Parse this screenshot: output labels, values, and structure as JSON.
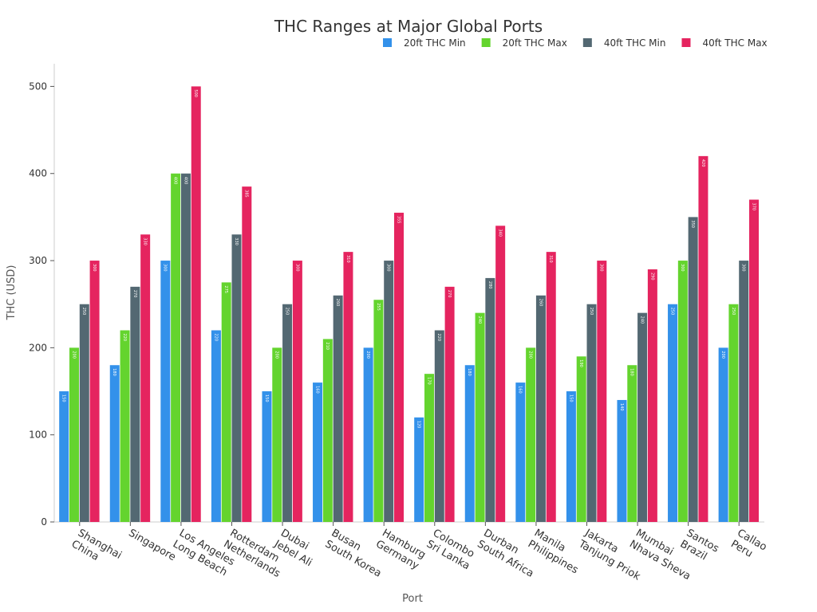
{
  "chart_data": {
    "type": "bar",
    "title": "THC Ranges at Major Global Ports",
    "x_label": "Port",
    "y_label": "THC (USD)",
    "categories": [
      [
        "Shanghai",
        "China"
      ],
      [
        "Singapore"
      ],
      [
        "Los Angeles",
        "Long Beach"
      ],
      [
        "Rotterdam",
        "Netherlands"
      ],
      [
        "Dubai",
        "Jebel Ali"
      ],
      [
        "Busan",
        "South Korea"
      ],
      [
        "Hamburg",
        "Germany"
      ],
      [
        "Colombo",
        "Sri Lanka"
      ],
      [
        "Durban",
        "South Africa"
      ],
      [
        "Manila",
        "Philippines"
      ],
      [
        "Jakarta",
        "Tanjung Priok"
      ],
      [
        "Mumbai",
        "Nhava Sheva"
      ],
      [
        "Santos",
        "Brazil"
      ],
      [
        "Callao",
        "Peru"
      ]
    ],
    "series": [
      {
        "name": "20ft THC Min",
        "color": "#3391ea",
        "values": [
          150,
          180,
          300,
          220,
          150,
          160,
          200,
          120,
          180,
          160,
          150,
          140,
          250,
          200
        ]
      },
      {
        "name": "20ft THC Max",
        "color": "#64d42e",
        "values": [
          200,
          220,
          400,
          275,
          200,
          210,
          255,
          170,
          240,
          200,
          190,
          180,
          300,
          250
        ]
      },
      {
        "name": "40ft THC Min",
        "color": "#536872",
        "values": [
          250,
          270,
          400,
          330,
          250,
          260,
          300,
          220,
          280,
          260,
          250,
          240,
          350,
          300
        ]
      },
      {
        "name": "40ft THC Max",
        "color": "#e5245f",
        "values": [
          300,
          330,
          500,
          385,
          300,
          310,
          355,
          270,
          340,
          310,
          300,
          290,
          420,
          370
        ]
      }
    ],
    "ylim": [
      0,
      526
    ],
    "yticks": [
      0,
      100,
      200,
      300,
      400,
      500
    ],
    "legend": "top-right"
  }
}
